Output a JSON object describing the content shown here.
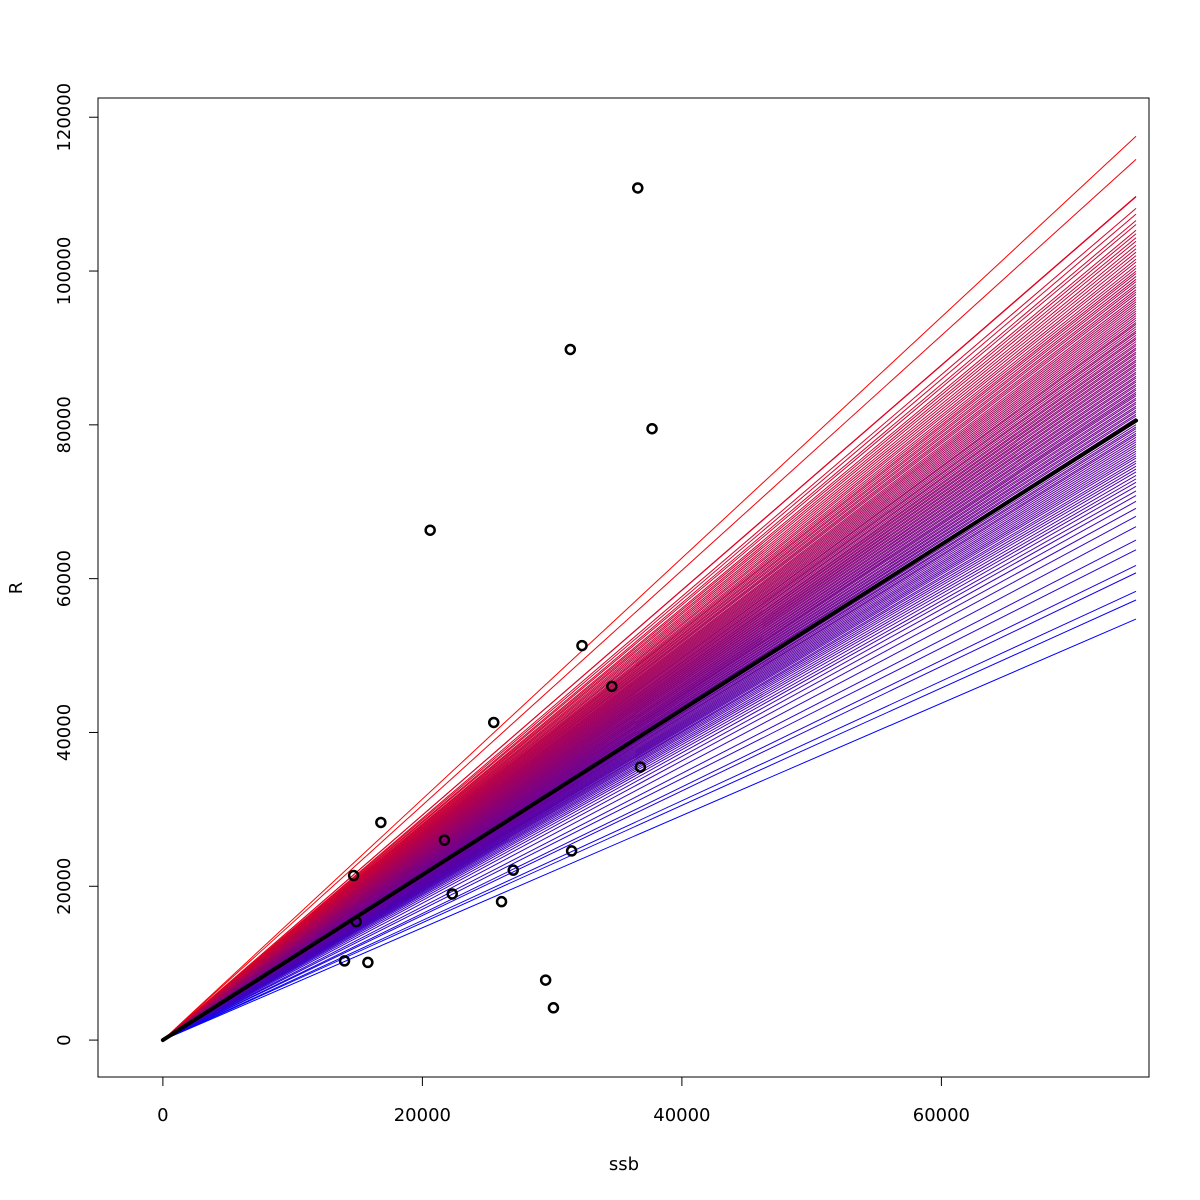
{
  "chart_data": {
    "type": "scatter",
    "title": "",
    "xlabel": "ssb",
    "ylabel": "R",
    "xlim": [
      -5000,
      76000
    ],
    "ylim": [
      -4800,
      122500
    ],
    "x_ticks": [
      0,
      20000,
      40000,
      60000
    ],
    "x_tick_labels": [
      "0",
      "20000",
      "40000",
      "60000"
    ],
    "y_ticks": [
      0,
      20000,
      40000,
      60000,
      80000,
      100000,
      120000
    ],
    "y_tick_labels": [
      "0",
      "20000",
      "40000",
      "60000",
      "80000",
      "100000",
      "120000"
    ],
    "grid": false,
    "legend": "none",
    "points": [
      {
        "x": 36600,
        "y": 110800
      },
      {
        "x": 31400,
        "y": 89800
      },
      {
        "x": 37700,
        "y": 79500
      },
      {
        "x": 20600,
        "y": 66300
      },
      {
        "x": 32300,
        "y": 51300
      },
      {
        "x": 34600,
        "y": 46000
      },
      {
        "x": 25500,
        "y": 41300
      },
      {
        "x": 36800,
        "y": 35500
      },
      {
        "x": 16800,
        "y": 28300
      },
      {
        "x": 21700,
        "y": 26000
      },
      {
        "x": 31500,
        "y": 24600
      },
      {
        "x": 14700,
        "y": 21400
      },
      {
        "x": 27000,
        "y": 22100
      },
      {
        "x": 22300,
        "y": 19000
      },
      {
        "x": 26100,
        "y": 18000
      },
      {
        "x": 14900,
        "y": 15400
      },
      {
        "x": 14000,
        "y": 10300
      },
      {
        "x": 15800,
        "y": 10100
      },
      {
        "x": 29500,
        "y": 7800
      },
      {
        "x": 30100,
        "y": 4200
      }
    ],
    "fit": {
      "x_start": 0,
      "x_end": 75000,
      "slope": 1.074,
      "color": "#000000"
    },
    "bootstrap_lines": {
      "x_start": 0,
      "x_end": 75000,
      "color_low": "#0000ff",
      "color_high": "#ff0000",
      "slopes": [
        1.567,
        1.527,
        1.463,
        1.462,
        1.442,
        1.432,
        1.421,
        1.414,
        1.404,
        1.398,
        1.391,
        1.385,
        1.378,
        1.372,
        1.366,
        1.36,
        1.354,
        1.349,
        1.343,
        1.338,
        1.333,
        1.329,
        1.324,
        1.319,
        1.315,
        1.31,
        1.306,
        1.301,
        1.297,
        1.293,
        1.288,
        1.284,
        1.28,
        1.276,
        1.272,
        1.268,
        1.264,
        1.26,
        1.256,
        1.252,
        1.248,
        1.244,
        1.241,
        1.237,
        1.233,
        1.229,
        1.226,
        1.222,
        1.218,
        1.215,
        1.211,
        1.207,
        1.204,
        1.2,
        1.197,
        1.193,
        1.19,
        1.186,
        1.183,
        1.179,
        1.176,
        1.172,
        1.169,
        1.165,
        1.162,
        1.158,
        1.155,
        1.151,
        1.148,
        1.144,
        1.141,
        1.137,
        1.134,
        1.13,
        1.127,
        1.123,
        1.12,
        1.117,
        1.113,
        1.11,
        1.106,
        1.103,
        1.099,
        1.096,
        1.092,
        1.089,
        1.085,
        1.082,
        1.078,
        1.074,
        1.071,
        1.067,
        1.063,
        1.06,
        1.056,
        1.052,
        1.049,
        1.045,
        1.041,
        1.037,
        1.033,
        1.029,
        1.025,
        1.021,
        1.017,
        1.013,
        1.009,
        1.004,
        1.0,
        0.995,
        0.99,
        0.985,
        0.979,
        0.973,
        0.967,
        0.96,
        0.952,
        0.944,
        0.934,
        0.922,
        0.908,
        0.89,
        0.867,
        0.85,
        0.823,
        0.81,
        0.778,
        0.763,
        0.73
      ]
    }
  }
}
